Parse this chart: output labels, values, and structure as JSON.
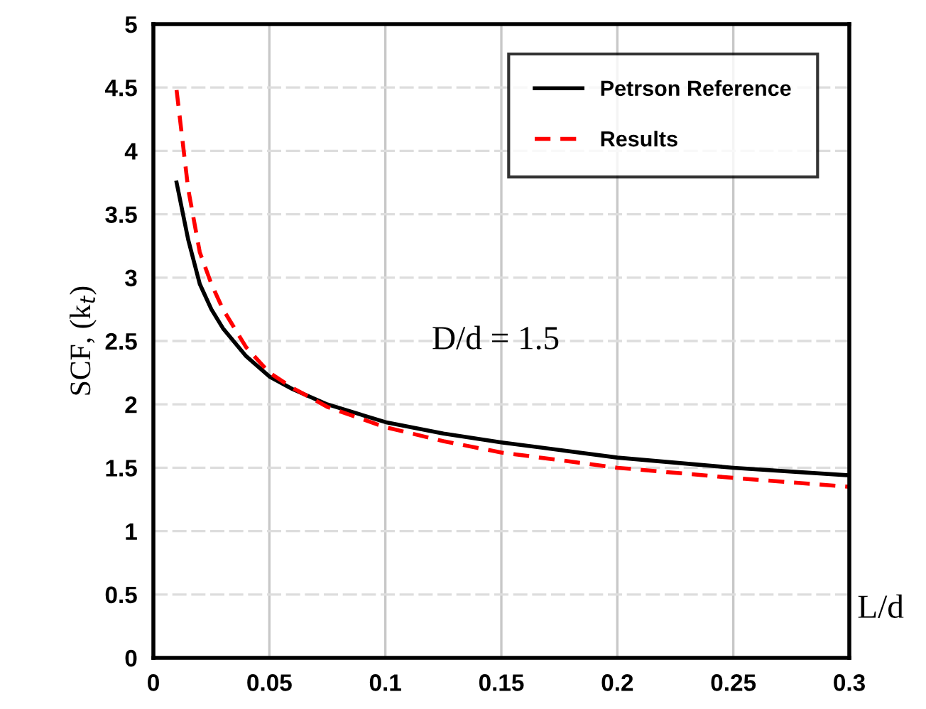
{
  "chart_data": {
    "type": "line",
    "xlabel": "L/d",
    "ylabel": "SCF, (k$_{t}$)",
    "xlim": [
      0,
      0.3
    ],
    "xticks": [
      0,
      0.05,
      0.1,
      0.15,
      0.2,
      0.25,
      0.3
    ],
    "ylim": [
      0,
      5
    ],
    "yticks": [
      0,
      0.5,
      1,
      1.5,
      2,
      2.5,
      3,
      3.5,
      4,
      4.5,
      5
    ],
    "grid": true,
    "legend": "top right",
    "annotations": [
      "D/d = 1.5"
    ],
    "series": [
      {
        "name": "Petrson Reference",
        "color": "#000000",
        "line_style": "solid",
        "x": [
          0.01,
          0.015,
          0.02,
          0.025,
          0.03,
          0.04,
          0.05,
          0.06,
          0.075,
          0.1,
          0.125,
          0.15,
          0.2,
          0.25,
          0.3
        ],
        "values": [
          3.75,
          3.3,
          2.95,
          2.75,
          2.6,
          2.38,
          2.22,
          2.12,
          2.0,
          1.86,
          1.77,
          1.7,
          1.58,
          1.5,
          1.44
        ]
      },
      {
        "name": "Results",
        "color": "#ff0000",
        "line_style": "dashed",
        "x": [
          0.01,
          0.015,
          0.02,
          0.025,
          0.03,
          0.04,
          0.05,
          0.06,
          0.075,
          0.1,
          0.125,
          0.15,
          0.2,
          0.25,
          0.3
        ],
        "values": [
          4.48,
          3.7,
          3.2,
          2.95,
          2.75,
          2.45,
          2.25,
          2.13,
          1.98,
          1.82,
          1.71,
          1.62,
          1.5,
          1.42,
          1.35
        ]
      }
    ]
  }
}
